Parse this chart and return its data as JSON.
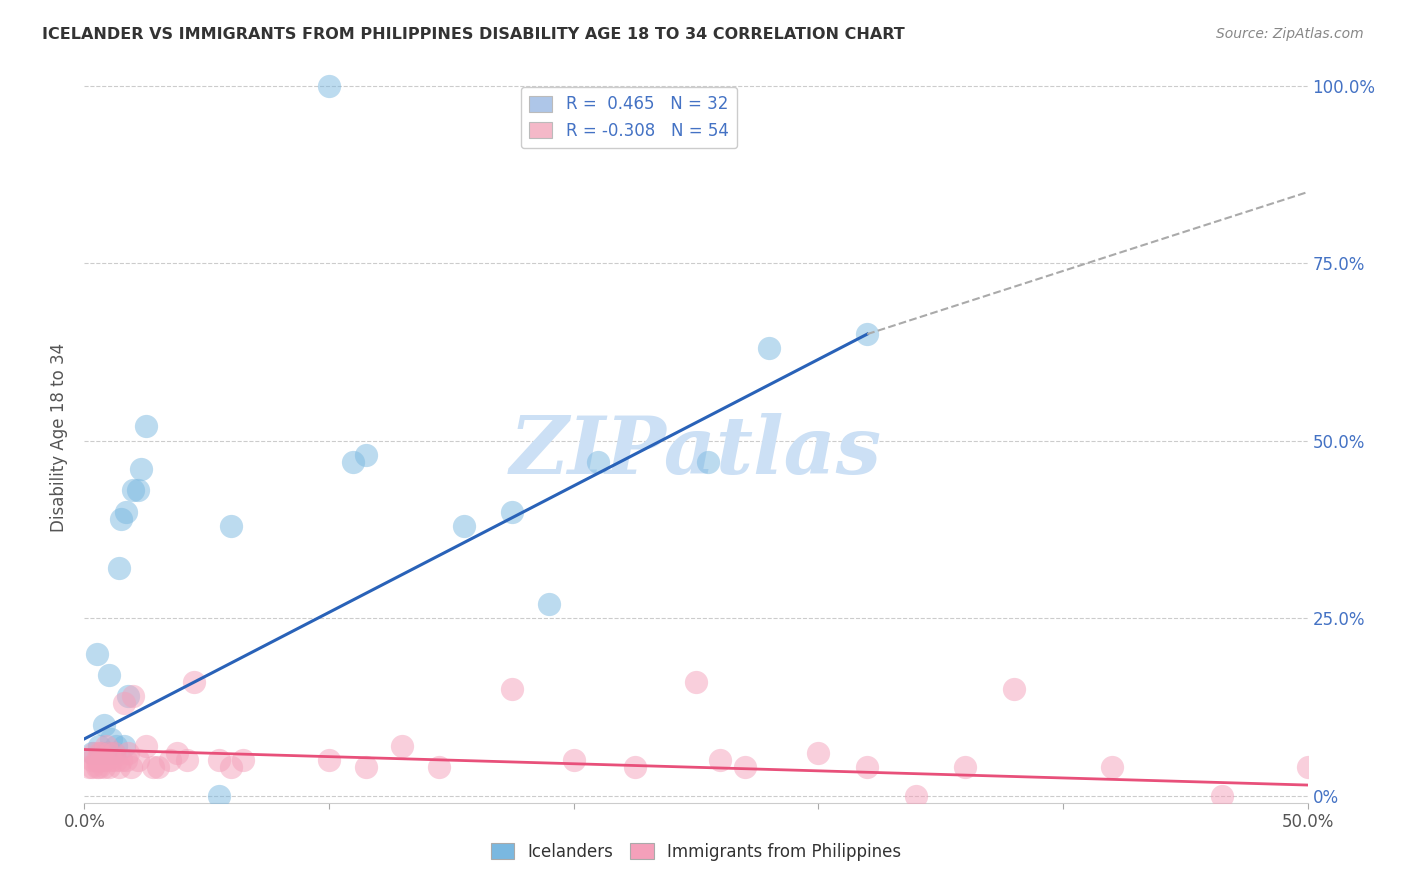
{
  "title": "ICELANDER VS IMMIGRANTS FROM PHILIPPINES DISABILITY AGE 18 TO 34 CORRELATION CHART",
  "source": "Source: ZipAtlas.com",
  "xlabel_ticks": [
    "0.0%",
    "",
    "",
    "",
    "",
    "50.0%"
  ],
  "ylabel": "Disability Age 18 to 34",
  "xlim": [
    0.0,
    0.5
  ],
  "ylim": [
    -0.01,
    1.02
  ],
  "legend_items": [
    {
      "label_r": "R =  0.465",
      "label_n": "N = 32",
      "color": "#aec6e8"
    },
    {
      "label_r": "R = -0.308",
      "label_n": "N = 54",
      "color": "#f4b8c8"
    }
  ],
  "icelanders_color": "#7ab8e0",
  "immigrants_color": "#f4a0ba",
  "trendline_icelanders_color": "#2962b8",
  "trendline_immigrants_color": "#e8507a",
  "dashed_color": "#aaaaaa",
  "watermark": "ZIPatlas",
  "watermark_color": "#cce0f5",
  "icelanders_x": [
    0.003,
    0.005,
    0.006,
    0.007,
    0.008,
    0.009,
    0.01,
    0.01,
    0.011,
    0.012,
    0.013,
    0.014,
    0.015,
    0.016,
    0.017,
    0.018,
    0.02,
    0.022,
    0.023,
    0.025,
    0.055,
    0.06,
    0.1,
    0.11,
    0.115,
    0.155,
    0.175,
    0.19,
    0.21,
    0.255,
    0.28,
    0.32
  ],
  "icelanders_y": [
    0.06,
    0.2,
    0.07,
    0.06,
    0.1,
    0.06,
    0.17,
    0.06,
    0.08,
    0.06,
    0.07,
    0.32,
    0.39,
    0.07,
    0.4,
    0.14,
    0.43,
    0.43,
    0.46,
    0.52,
    0.0,
    0.38,
    1.0,
    0.47,
    0.48,
    0.38,
    0.4,
    0.27,
    0.47,
    0.47,
    0.63,
    0.65
  ],
  "immigrants_x": [
    0.002,
    0.003,
    0.003,
    0.004,
    0.005,
    0.005,
    0.006,
    0.006,
    0.007,
    0.007,
    0.008,
    0.008,
    0.009,
    0.01,
    0.01,
    0.011,
    0.012,
    0.013,
    0.014,
    0.015,
    0.016,
    0.017,
    0.018,
    0.019,
    0.02,
    0.022,
    0.025,
    0.028,
    0.03,
    0.035,
    0.038,
    0.042,
    0.045,
    0.055,
    0.06,
    0.065,
    0.1,
    0.115,
    0.13,
    0.145,
    0.175,
    0.2,
    0.225,
    0.25,
    0.26,
    0.27,
    0.3,
    0.32,
    0.34,
    0.36,
    0.38,
    0.42,
    0.465,
    0.5
  ],
  "immigrants_y": [
    0.04,
    0.05,
    0.04,
    0.06,
    0.05,
    0.04,
    0.06,
    0.04,
    0.05,
    0.06,
    0.05,
    0.04,
    0.07,
    0.06,
    0.04,
    0.05,
    0.06,
    0.05,
    0.04,
    0.05,
    0.13,
    0.05,
    0.06,
    0.04,
    0.14,
    0.05,
    0.07,
    0.04,
    0.04,
    0.05,
    0.06,
    0.05,
    0.16,
    0.05,
    0.04,
    0.05,
    0.05,
    0.04,
    0.07,
    0.04,
    0.15,
    0.05,
    0.04,
    0.16,
    0.05,
    0.04,
    0.06,
    0.04,
    0.0,
    0.04,
    0.15,
    0.04,
    0.0,
    0.04
  ],
  "trendline_ice_x0": 0.0,
  "trendline_ice_y0": 0.08,
  "trendline_ice_x1": 0.32,
  "trendline_ice_y1": 0.65,
  "trendline_ice_dash_x1": 0.5,
  "trendline_ice_dash_y1": 0.85,
  "trendline_imm_x0": 0.0,
  "trendline_imm_y0": 0.065,
  "trendline_imm_x1": 0.5,
  "trendline_imm_y1": 0.015
}
